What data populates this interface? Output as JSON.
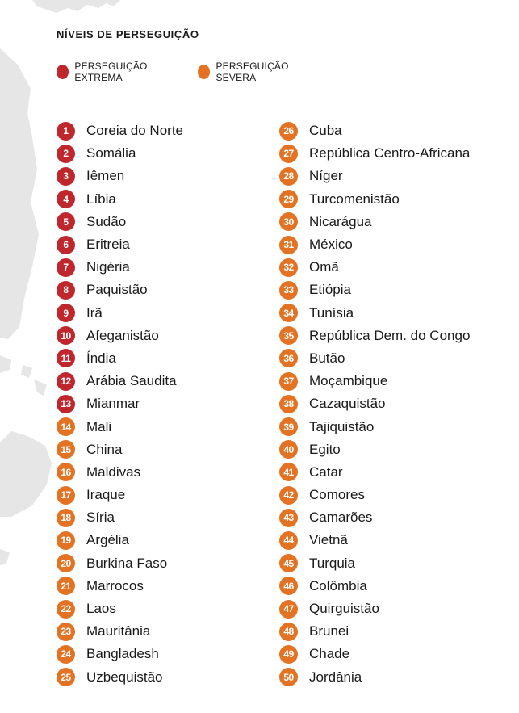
{
  "header": {
    "title": "NÍVEIS DE PERSEGUIÇÃO"
  },
  "legend": [
    {
      "label": "PERSEGUIÇÃO EXTREMA",
      "color": "#c0272d"
    },
    {
      "label": "PERSEGUIÇÃO SEVERA",
      "color": "#e37222"
    }
  ],
  "colors": {
    "extreme": "#c0272d",
    "severe": "#e37222",
    "map": "#e6e6e6"
  },
  "countries": [
    {
      "rank": "1",
      "name": "Coreia do Norte",
      "level": "extreme"
    },
    {
      "rank": "2",
      "name": "Somália",
      "level": "extreme"
    },
    {
      "rank": "3",
      "name": "Iêmen",
      "level": "extreme"
    },
    {
      "rank": "4",
      "name": "Líbia",
      "level": "extreme"
    },
    {
      "rank": "5",
      "name": "Sudão",
      "level": "extreme"
    },
    {
      "rank": "6",
      "name": "Eritreia",
      "level": "extreme"
    },
    {
      "rank": "7",
      "name": "Nigéria",
      "level": "extreme"
    },
    {
      "rank": "8",
      "name": "Paquistão",
      "level": "extreme"
    },
    {
      "rank": "9",
      "name": "Irã",
      "level": "extreme"
    },
    {
      "rank": "10",
      "name": "Afeganistão",
      "level": "extreme"
    },
    {
      "rank": "11",
      "name": "Índia",
      "level": "extreme"
    },
    {
      "rank": "12",
      "name": "Arábia Saudita",
      "level": "extreme"
    },
    {
      "rank": "13",
      "name": "Mianmar",
      "level": "extreme"
    },
    {
      "rank": "14",
      "name": "Mali",
      "level": "severe"
    },
    {
      "rank": "15",
      "name": "China",
      "level": "severe"
    },
    {
      "rank": "16",
      "name": "Maldivas",
      "level": "severe"
    },
    {
      "rank": "17",
      "name": "Iraque",
      "level": "severe"
    },
    {
      "rank": "18",
      "name": "Síria",
      "level": "severe"
    },
    {
      "rank": "19",
      "name": "Argélia",
      "level": "severe"
    },
    {
      "rank": "20",
      "name": "Burkina Faso",
      "level": "severe"
    },
    {
      "rank": "21",
      "name": "Marrocos",
      "level": "severe"
    },
    {
      "rank": "22",
      "name": "Laos",
      "level": "severe"
    },
    {
      "rank": "23",
      "name": "Mauritânia",
      "level": "severe"
    },
    {
      "rank": "24",
      "name": "Bangladesh",
      "level": "severe"
    },
    {
      "rank": "25",
      "name": "Uzbequistão",
      "level": "severe"
    },
    {
      "rank": "26",
      "name": "Cuba",
      "level": "severe"
    },
    {
      "rank": "27",
      "name": "República Centro-Africana",
      "level": "severe"
    },
    {
      "rank": "28",
      "name": "Níger",
      "level": "severe"
    },
    {
      "rank": "29",
      "name": "Turcomenistão",
      "level": "severe"
    },
    {
      "rank": "30",
      "name": "Nicarágua",
      "level": "severe"
    },
    {
      "rank": "31",
      "name": "México",
      "level": "severe"
    },
    {
      "rank": "32",
      "name": "Omã",
      "level": "severe"
    },
    {
      "rank": "33",
      "name": "Etiópia",
      "level": "severe"
    },
    {
      "rank": "34",
      "name": "Tunísia",
      "level": "severe"
    },
    {
      "rank": "35",
      "name": "República Dem. do Congo",
      "level": "severe"
    },
    {
      "rank": "36",
      "name": "Butão",
      "level": "severe"
    },
    {
      "rank": "37",
      "name": "Moçambique",
      "level": "severe"
    },
    {
      "rank": "38",
      "name": "Cazaquistão",
      "level": "severe"
    },
    {
      "rank": "39",
      "name": "Tajiquistão",
      "level": "severe"
    },
    {
      "rank": "40",
      "name": "Egito",
      "level": "severe"
    },
    {
      "rank": "41",
      "name": "Catar",
      "level": "severe"
    },
    {
      "rank": "42",
      "name": "Comores",
      "level": "severe"
    },
    {
      "rank": "43",
      "name": "Camarões",
      "level": "severe"
    },
    {
      "rank": "44",
      "name": "Vietnã",
      "level": "severe"
    },
    {
      "rank": "45",
      "name": "Turquia",
      "level": "severe"
    },
    {
      "rank": "46",
      "name": "Colômbia",
      "level": "severe"
    },
    {
      "rank": "47",
      "name": "Quirguistão",
      "level": "severe"
    },
    {
      "rank": "48",
      "name": "Brunei",
      "level": "severe"
    },
    {
      "rank": "49",
      "name": "Chade",
      "level": "severe"
    },
    {
      "rank": "50",
      "name": "Jordânia",
      "level": "severe"
    }
  ]
}
